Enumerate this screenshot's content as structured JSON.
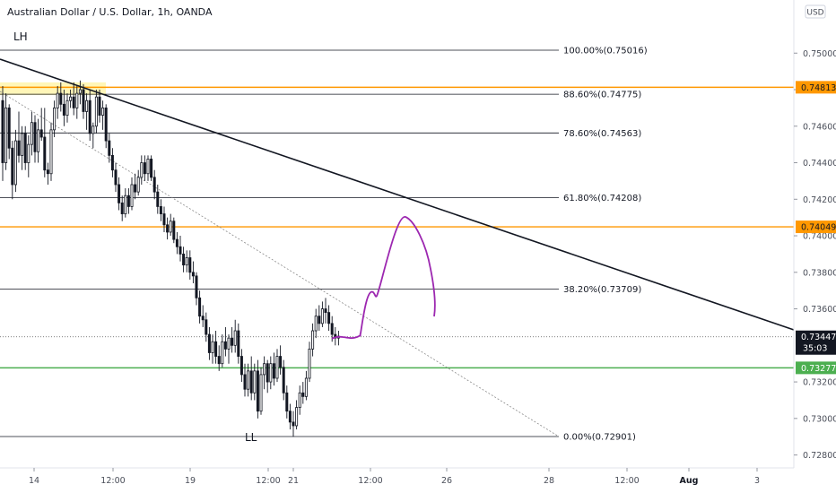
{
  "title": "Australian Dollar / U.S. Dollar, 1h, OANDA",
  "currency_button": "USD",
  "annotations": {
    "top_left": "LH",
    "bottom": "LL"
  },
  "colors": {
    "fib_line": "#131722",
    "orange": "#ff9800",
    "green": "#4caf50",
    "trendline": "#131722",
    "dotted": "#8a8a8a",
    "projection": "#9c27b0",
    "highlight": "#fff6b8",
    "candle": "#131722"
  },
  "chart_data": {
    "type": "candlestick",
    "title": "Australian Dollar / U.S. Dollar, 1h, OANDA",
    "ylim": [
      0.7271,
      0.7522
    ],
    "y_ticks": [
      0.75,
      0.748,
      0.746,
      0.744,
      0.742,
      0.74,
      0.738,
      0.736,
      0.732,
      0.73,
      0.728
    ],
    "y_tick_labels": [
      "0.75000",
      "0.74800",
      "0.74600",
      "0.74400",
      "0.74200",
      "0.74000",
      "0.73800",
      "0.73600",
      "0.73200",
      "0.73000",
      "0.72800"
    ],
    "x_tick_labels": [
      "14",
      "12:00",
      "19",
      "12:00",
      "21",
      "12:00",
      "26",
      "28",
      "12:00",
      "Aug",
      "3"
    ],
    "x_tick_bold": [
      false,
      false,
      false,
      false,
      false,
      false,
      false,
      false,
      false,
      true,
      false
    ],
    "fib_levels": [
      {
        "label": "100.00%(0.75016)",
        "price": 0.75016
      },
      {
        "label": "88.60%(0.74775)",
        "price": 0.74775
      },
      {
        "label": "78.60%(0.74563)",
        "price": 0.74563
      },
      {
        "label": "61.80%(0.74208)",
        "price": 0.74208
      },
      {
        "label": "38.20%(0.73709)",
        "price": 0.73709
      },
      {
        "label": "0.00%(0.72901)",
        "price": 0.72901
      }
    ],
    "horizontal_levels": [
      {
        "label": "0.74813",
        "price": 0.74813,
        "color": "orange"
      },
      {
        "label": "0.74049",
        "price": 0.74049,
        "color": "orange"
      },
      {
        "label": "0.73277",
        "price": 0.73277,
        "color": "green"
      }
    ],
    "last_price": {
      "label": "0.73447",
      "countdown": "35:03",
      "price": 0.73447
    },
    "candles": [
      [
        0.7474,
        0.7482,
        0.743,
        0.744
      ],
      [
        0.744,
        0.7478,
        0.7436,
        0.747
      ],
      [
        0.747,
        0.7472,
        0.7442,
        0.7448
      ],
      [
        0.7448,
        0.7452,
        0.742,
        0.7428
      ],
      [
        0.7428,
        0.7458,
        0.7424,
        0.7452
      ],
      [
        0.7452,
        0.7468,
        0.744,
        0.7444
      ],
      [
        0.7444,
        0.746,
        0.7436,
        0.7456
      ],
      [
        0.7456,
        0.746,
        0.7436,
        0.744
      ],
      [
        0.744,
        0.7455,
        0.7432,
        0.745
      ],
      [
        0.745,
        0.7468,
        0.7444,
        0.7462
      ],
      [
        0.7462,
        0.7466,
        0.744,
        0.7446
      ],
      [
        0.7446,
        0.7464,
        0.744,
        0.7458
      ],
      [
        0.7458,
        0.747,
        0.7452,
        0.7454
      ],
      [
        0.7454,
        0.747,
        0.7432,
        0.7436
      ],
      [
        0.7436,
        0.744,
        0.7428,
        0.7434
      ],
      [
        0.7434,
        0.7462,
        0.743,
        0.7458
      ],
      [
        0.7458,
        0.7474,
        0.7454,
        0.747
      ],
      [
        0.747,
        0.7482,
        0.7464,
        0.7478
      ],
      [
        0.7478,
        0.7484,
        0.7468,
        0.7472
      ],
      [
        0.7472,
        0.748,
        0.746,
        0.7466
      ],
      [
        0.7466,
        0.7478,
        0.7462,
        0.7474
      ],
      [
        0.7474,
        0.748,
        0.747,
        0.7476
      ],
      [
        0.7476,
        0.7484,
        0.7466,
        0.747
      ],
      [
        0.747,
        0.7482,
        0.7464,
        0.7478
      ],
      [
        0.7478,
        0.7485,
        0.7472,
        0.748
      ],
      [
        0.748,
        0.7483,
        0.7464,
        0.7468
      ],
      [
        0.7468,
        0.7478,
        0.7458,
        0.7474
      ],
      [
        0.7474,
        0.748,
        0.7452,
        0.7456
      ],
      [
        0.7456,
        0.7462,
        0.7448,
        0.746
      ],
      [
        0.746,
        0.748,
        0.7456,
        0.7476
      ],
      [
        0.7476,
        0.748,
        0.7462,
        0.7466
      ],
      [
        0.7466,
        0.7474,
        0.7458,
        0.747
      ],
      [
        0.747,
        0.7472,
        0.7448,
        0.7452
      ],
      [
        0.7452,
        0.7456,
        0.744,
        0.7444
      ],
      [
        0.7444,
        0.7448,
        0.7432,
        0.7436
      ],
      [
        0.7436,
        0.744,
        0.7424,
        0.7428
      ],
      [
        0.7428,
        0.7432,
        0.7414,
        0.7418
      ],
      [
        0.7418,
        0.7422,
        0.7408,
        0.7412
      ],
      [
        0.7412,
        0.7426,
        0.741,
        0.7422
      ],
      [
        0.7422,
        0.7426,
        0.7412,
        0.7416
      ],
      [
        0.7416,
        0.7432,
        0.7414,
        0.7428
      ],
      [
        0.7428,
        0.7434,
        0.742,
        0.7424
      ],
      [
        0.7424,
        0.7436,
        0.7422,
        0.7432
      ],
      [
        0.7432,
        0.7444,
        0.7428,
        0.744
      ],
      [
        0.744,
        0.7444,
        0.743,
        0.7434
      ],
      [
        0.7434,
        0.7444,
        0.743,
        0.7442
      ],
      [
        0.7442,
        0.7444,
        0.743,
        0.7432
      ],
      [
        0.7432,
        0.7436,
        0.742,
        0.7424
      ],
      [
        0.7424,
        0.7428,
        0.7412,
        0.7416
      ],
      [
        0.7416,
        0.742,
        0.7408,
        0.7412
      ],
      [
        0.7412,
        0.7416,
        0.7402,
        0.7406
      ],
      [
        0.7406,
        0.741,
        0.7398,
        0.7402
      ],
      [
        0.7402,
        0.7412,
        0.74,
        0.7408
      ],
      [
        0.7408,
        0.741,
        0.7396,
        0.7398
      ],
      [
        0.7398,
        0.7402,
        0.739,
        0.7394
      ],
      [
        0.7394,
        0.74,
        0.7386,
        0.739
      ],
      [
        0.739,
        0.7394,
        0.738,
        0.7384
      ],
      [
        0.7384,
        0.7392,
        0.738,
        0.7388
      ],
      [
        0.7388,
        0.7392,
        0.7376,
        0.738
      ],
      [
        0.738,
        0.7386,
        0.7374,
        0.7378
      ],
      [
        0.7378,
        0.738,
        0.7362,
        0.7366
      ],
      [
        0.7366,
        0.737,
        0.7352,
        0.7356
      ],
      [
        0.7356,
        0.7362,
        0.735,
        0.7354
      ],
      [
        0.7354,
        0.7358,
        0.7342,
        0.7346
      ],
      [
        0.7346,
        0.735,
        0.7332,
        0.7336
      ],
      [
        0.7336,
        0.7346,
        0.733,
        0.7342
      ],
      [
        0.7342,
        0.7348,
        0.733,
        0.7334
      ],
      [
        0.7334,
        0.734,
        0.7326,
        0.733
      ],
      [
        0.733,
        0.7346,
        0.7328,
        0.7342
      ],
      [
        0.7342,
        0.735,
        0.7334,
        0.7338
      ],
      [
        0.7338,
        0.7346,
        0.733,
        0.7344
      ],
      [
        0.7344,
        0.735,
        0.7336,
        0.734
      ],
      [
        0.734,
        0.7354,
        0.7336,
        0.7348
      ],
      [
        0.7348,
        0.7352,
        0.733,
        0.7334
      ],
      [
        0.7334,
        0.7338,
        0.732,
        0.7324
      ],
      [
        0.7324,
        0.733,
        0.7312,
        0.7316
      ],
      [
        0.7316,
        0.733,
        0.7312,
        0.7326
      ],
      [
        0.7326,
        0.7334,
        0.731,
        0.7314
      ],
      [
        0.7314,
        0.733,
        0.731,
        0.7326
      ],
      [
        0.7326,
        0.7332,
        0.73,
        0.7304
      ],
      [
        0.7304,
        0.7328,
        0.7302,
        0.7324
      ],
      [
        0.7324,
        0.7334,
        0.7316,
        0.733
      ],
      [
        0.733,
        0.7332,
        0.7314,
        0.732
      ],
      [
        0.732,
        0.7334,
        0.7316,
        0.733
      ],
      [
        0.733,
        0.7336,
        0.7318,
        0.7322
      ],
      [
        0.7322,
        0.7338,
        0.732,
        0.7334
      ],
      [
        0.7334,
        0.734,
        0.7324,
        0.7328
      ],
      [
        0.7328,
        0.7332,
        0.731,
        0.7314
      ],
      [
        0.7314,
        0.7318,
        0.73,
        0.7304
      ],
      [
        0.7304,
        0.7308,
        0.7294,
        0.7298
      ],
      [
        0.7298,
        0.7304,
        0.729,
        0.7296
      ],
      [
        0.7296,
        0.731,
        0.7294,
        0.7306
      ],
      [
        0.7306,
        0.7318,
        0.7302,
        0.7314
      ],
      [
        0.7314,
        0.732,
        0.7308,
        0.7312
      ],
      [
        0.7312,
        0.7326,
        0.731,
        0.7322
      ],
      [
        0.7322,
        0.7342,
        0.732,
        0.7338
      ],
      [
        0.7338,
        0.7352,
        0.7334,
        0.7348
      ],
      [
        0.7348,
        0.736,
        0.7344,
        0.7356
      ],
      [
        0.7356,
        0.7362,
        0.7348,
        0.7352
      ],
      [
        0.7352,
        0.7364,
        0.735,
        0.736
      ],
      [
        0.736,
        0.7366,
        0.7352,
        0.7358
      ],
      [
        0.7358,
        0.7362,
        0.7348,
        0.7352
      ],
      [
        0.7352,
        0.7356,
        0.7342,
        0.7346
      ],
      [
        0.7346,
        0.735,
        0.734,
        0.7344
      ],
      [
        0.7344,
        0.7348,
        0.734,
        0.7345
      ]
    ]
  }
}
